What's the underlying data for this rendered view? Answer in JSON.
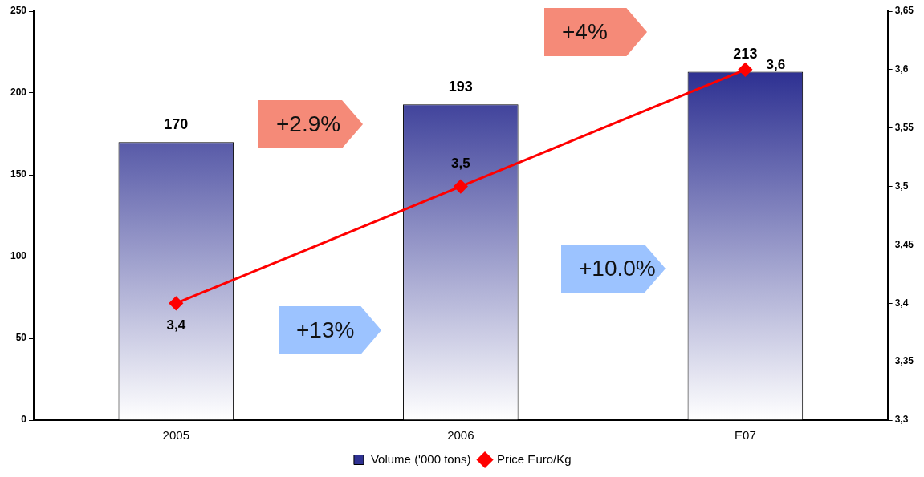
{
  "chart_data": {
    "type": "bar",
    "categories": [
      "2005",
      "2006",
      "E07"
    ],
    "series": [
      {
        "name": "Volume ('000 tons)",
        "color": "#2e3192",
        "values": [
          170,
          193,
          213
        ],
        "value_labels": [
          "170",
          "193",
          "213"
        ]
      },
      {
        "name": "Price Euro/Kg",
        "type": "line",
        "axis": "y2",
        "color": "#ff0000",
        "values": [
          3.4,
          3.5,
          3.6
        ],
        "value_labels": [
          "3,4",
          "3,5",
          "3,6"
        ]
      }
    ],
    "ylim": [
      0,
      250
    ],
    "yticks": [
      0,
      50,
      100,
      150,
      200,
      250
    ],
    "y2lim": [
      3.3,
      3.65
    ],
    "y2ticks": [
      {
        "value": 3.3,
        "label": "3,3"
      },
      {
        "value": 3.35,
        "label": "3,35"
      },
      {
        "value": 3.4,
        "label": "3,4"
      },
      {
        "value": 3.45,
        "label": "3,45"
      },
      {
        "value": 3.5,
        "label": "3,5"
      },
      {
        "value": 3.55,
        "label": "3,55"
      },
      {
        "value": 3.6,
        "label": "3,6"
      },
      {
        "value": 3.65,
        "label": "3,65"
      }
    ],
    "annotations": [
      "+2.9%",
      "+4%",
      "+13%",
      "+10.0%"
    ],
    "marker": "diamond",
    "grid": false,
    "legend": "bottom"
  }
}
